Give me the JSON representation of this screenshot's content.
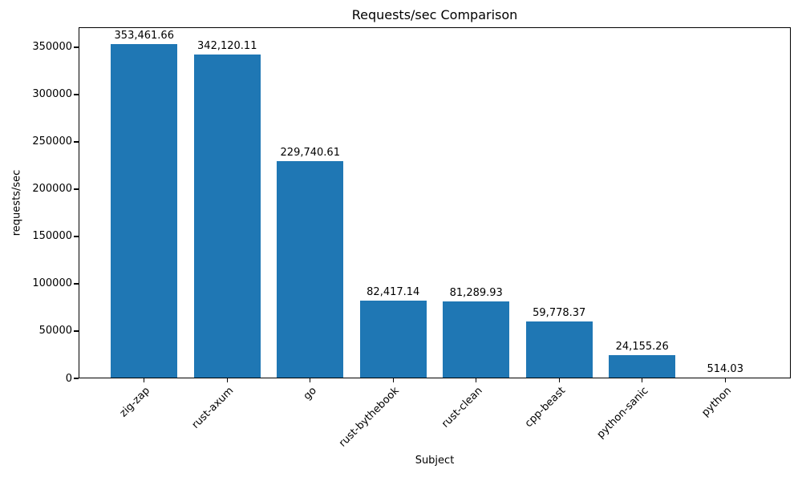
{
  "chart_data": {
    "type": "bar",
    "title": "Requests/sec Comparison",
    "xlabel": "Subject",
    "ylabel": "requests/sec",
    "categories": [
      "zig-zap",
      "rust-axum",
      "go",
      "rust-bythebook",
      "rust-clean",
      "cpp-beast",
      "python-sanic",
      "python"
    ],
    "values": [
      353461.66,
      342120.11,
      229740.61,
      82417.14,
      81289.93,
      59778.37,
      24155.26,
      514.03
    ],
    "bar_labels": [
      "353,461.66",
      "342,120.11",
      "229,740.61",
      "82,417.14",
      "81,289.93",
      "59,778.37",
      "24,155.26",
      "514.03"
    ],
    "yticks": [
      0,
      50000,
      100000,
      150000,
      200000,
      250000,
      300000,
      350000
    ],
    "ytick_labels": [
      "0",
      "50000",
      "100000",
      "150000",
      "200000",
      "250000",
      "300000",
      "350000"
    ],
    "ylim": [
      0,
      371135
    ],
    "xlim": [
      -0.79,
      7.79
    ],
    "bar_width": 0.8,
    "bar_color": "#1f77b4",
    "grid": false,
    "legend_position": "none"
  }
}
